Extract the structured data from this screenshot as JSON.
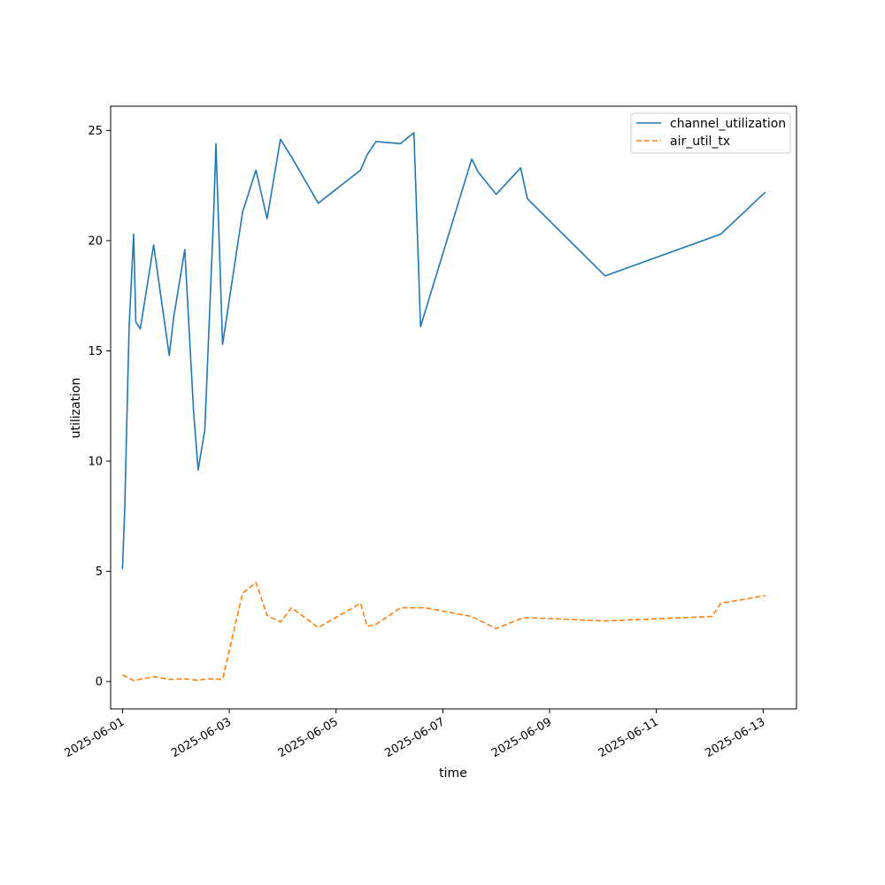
{
  "chart_data": {
    "type": "line",
    "title": "",
    "xlabel": "time",
    "ylabel": "utilization",
    "xlim": [
      "2025-05-31T18:40",
      "2025-06-13T15:00"
    ],
    "ylim": [
      -1.24,
      26.1
    ],
    "x_ticks": [
      "2025-06-01",
      "2025-06-03",
      "2025-06-05",
      "2025-06-07",
      "2025-06-09",
      "2025-06-11",
      "2025-06-13"
    ],
    "y_ticks": [
      0,
      5,
      10,
      15,
      20,
      25
    ],
    "legend": {
      "position": "upper-right"
    },
    "grid": false,
    "series": [
      {
        "name": "channel_utilization",
        "color": "#1f77b4",
        "style": "solid",
        "points": [
          [
            "2025-06-01T00:00",
            5.1
          ],
          [
            "2025-06-01T01:00",
            7.8
          ],
          [
            "2025-06-01T03:00",
            16.1
          ],
          [
            "2025-06-01T05:00",
            20.3
          ],
          [
            "2025-06-01T06:00",
            16.3
          ],
          [
            "2025-06-01T08:00",
            16.0
          ],
          [
            "2025-06-01T14:00",
            19.8
          ],
          [
            "2025-06-01T21:00",
            14.8
          ],
          [
            "2025-06-01T23:00",
            16.5
          ],
          [
            "2025-06-02T04:00",
            19.6
          ],
          [
            "2025-06-02T08:00",
            12.2
          ],
          [
            "2025-06-02T10:00",
            9.6
          ],
          [
            "2025-06-02T13:00",
            11.4
          ],
          [
            "2025-06-02T17:00",
            21.3
          ],
          [
            "2025-06-02T18:00",
            24.4
          ],
          [
            "2025-06-02T21:00",
            15.3
          ],
          [
            "2025-06-03T06:00",
            21.3
          ],
          [
            "2025-06-03T12:00",
            23.2
          ],
          [
            "2025-06-03T17:00",
            21.0
          ],
          [
            "2025-06-03T23:00",
            24.6
          ],
          [
            "2025-06-04T04:00",
            23.8
          ],
          [
            "2025-06-04T16:00",
            21.7
          ],
          [
            "2025-06-05T11:00",
            23.2
          ],
          [
            "2025-06-05T14:00",
            23.9
          ],
          [
            "2025-06-05T18:00",
            24.5
          ],
          [
            "2025-06-06T05:00",
            24.4
          ],
          [
            "2025-06-06T11:00",
            24.9
          ],
          [
            "2025-06-06T14:00",
            16.1
          ],
          [
            "2025-06-07T13:00",
            23.7
          ],
          [
            "2025-06-07T16:00",
            23.1
          ],
          [
            "2025-06-08T00:00",
            22.1
          ],
          [
            "2025-06-08T11:00",
            23.3
          ],
          [
            "2025-06-08T14:00",
            21.9
          ],
          [
            "2025-06-10T01:00",
            18.4
          ],
          [
            "2025-06-12T05:00",
            20.3
          ],
          [
            "2025-06-13T01:00",
            22.2
          ]
        ]
      },
      {
        "name": "air_util_tx",
        "color": "#ff7f0e",
        "style": "dashed",
        "points": [
          [
            "2025-06-01T00:00",
            0.3
          ],
          [
            "2025-06-01T02:00",
            0.2
          ],
          [
            "2025-06-01T05:00",
            0.05
          ],
          [
            "2025-06-01T14:00",
            0.22
          ],
          [
            "2025-06-01T21:00",
            0.1
          ],
          [
            "2025-06-02T04:00",
            0.12
          ],
          [
            "2025-06-02T10:00",
            0.06
          ],
          [
            "2025-06-02T14:00",
            0.12
          ],
          [
            "2025-06-02T21:00",
            0.1
          ],
          [
            "2025-06-03T06:00",
            4.0
          ],
          [
            "2025-06-03T12:00",
            4.5
          ],
          [
            "2025-06-03T17:00",
            3.0
          ],
          [
            "2025-06-03T23:00",
            2.7
          ],
          [
            "2025-06-04T04:00",
            3.35
          ],
          [
            "2025-06-04T16:00",
            2.45
          ],
          [
            "2025-06-05T11:00",
            3.55
          ],
          [
            "2025-06-05T14:00",
            2.5
          ],
          [
            "2025-06-05T18:00",
            2.6
          ],
          [
            "2025-06-06T05:00",
            3.35
          ],
          [
            "2025-06-06T16:00",
            3.35
          ],
          [
            "2025-06-07T13:00",
            2.95
          ],
          [
            "2025-06-08T00:00",
            2.4
          ],
          [
            "2025-06-08T11:00",
            2.85
          ],
          [
            "2025-06-08T14:00",
            2.9
          ],
          [
            "2025-06-10T01:00",
            2.75
          ],
          [
            "2025-06-12T01:00",
            2.95
          ],
          [
            "2025-06-12T05:00",
            3.55
          ],
          [
            "2025-06-13T01:00",
            3.9
          ]
        ]
      }
    ]
  }
}
